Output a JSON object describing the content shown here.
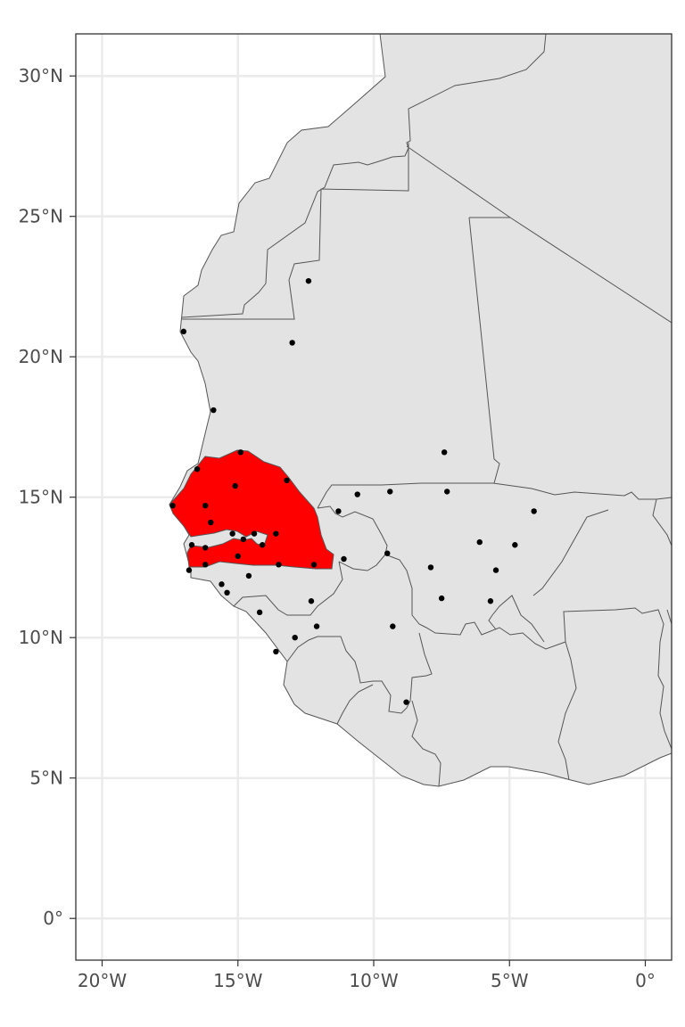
{
  "map": {
    "highlight_color": "#ff0000",
    "land_color": "#e3e3e3",
    "background": "#ffffff",
    "grid": true,
    "highlighted_country": "Senegal",
    "lon_range": [
      -21,
      1
    ],
    "lat_range": [
      -1.5,
      31.5
    ]
  },
  "axes": {
    "x_ticks": [
      {
        "value": -20,
        "label": "20°W"
      },
      {
        "value": -15,
        "label": "15°W"
      },
      {
        "value": -10,
        "label": "10°W"
      },
      {
        "value": -5,
        "label": "5°W"
      },
      {
        "value": 0,
        "label": "0°"
      }
    ],
    "y_ticks": [
      {
        "value": 30,
        "label": "30°N"
      },
      {
        "value": 25,
        "label": "25°N"
      },
      {
        "value": 20,
        "label": "20°N"
      },
      {
        "value": 15,
        "label": "15°N"
      },
      {
        "value": 10,
        "label": "10°N"
      },
      {
        "value": 5,
        "label": "5°N"
      },
      {
        "value": 0,
        "label": "0°"
      }
    ]
  },
  "cities": [
    [
      -12.4,
      22.7
    ],
    [
      -17.0,
      20.9
    ],
    [
      -13.0,
      20.5
    ],
    [
      -15.9,
      18.1
    ],
    [
      -14.9,
      16.6
    ],
    [
      -16.5,
      16.0
    ],
    [
      -13.2,
      15.6
    ],
    [
      -15.1,
      15.4
    ],
    [
      -17.4,
      14.7
    ],
    [
      -16.2,
      14.7
    ],
    [
      -16.0,
      14.1
    ],
    [
      -11.3,
      14.5
    ],
    [
      -10.6,
      15.1
    ],
    [
      -9.4,
      15.2
    ],
    [
      -7.4,
      16.6
    ],
    [
      -7.3,
      15.2
    ],
    [
      -4.1,
      14.5
    ],
    [
      -16.7,
      13.3
    ],
    [
      -16.2,
      13.2
    ],
    [
      -15.2,
      13.7
    ],
    [
      -14.8,
      13.5
    ],
    [
      -14.4,
      13.7
    ],
    [
      -14.1,
      13.3
    ],
    [
      -13.6,
      13.7
    ],
    [
      -15.0,
      12.9
    ],
    [
      -16.2,
      12.6
    ],
    [
      -16.8,
      12.4
    ],
    [
      -13.5,
      12.6
    ],
    [
      -12.2,
      12.6
    ],
    [
      -11.1,
      12.8
    ],
    [
      -14.6,
      12.2
    ],
    [
      -15.6,
      11.9
    ],
    [
      -15.4,
      11.6
    ],
    [
      -12.3,
      11.3
    ],
    [
      -14.2,
      10.9
    ],
    [
      -12.1,
      10.4
    ],
    [
      -12.9,
      10.0
    ],
    [
      -13.6,
      9.5
    ],
    [
      -9.5,
      13.0
    ],
    [
      -7.9,
      12.5
    ],
    [
      -6.1,
      13.4
    ],
    [
      -4.8,
      13.3
    ],
    [
      -5.5,
      12.4
    ],
    [
      -7.5,
      11.4
    ],
    [
      -5.7,
      11.3
    ],
    [
      -9.3,
      10.4
    ],
    [
      -8.8,
      7.7
    ]
  ]
}
